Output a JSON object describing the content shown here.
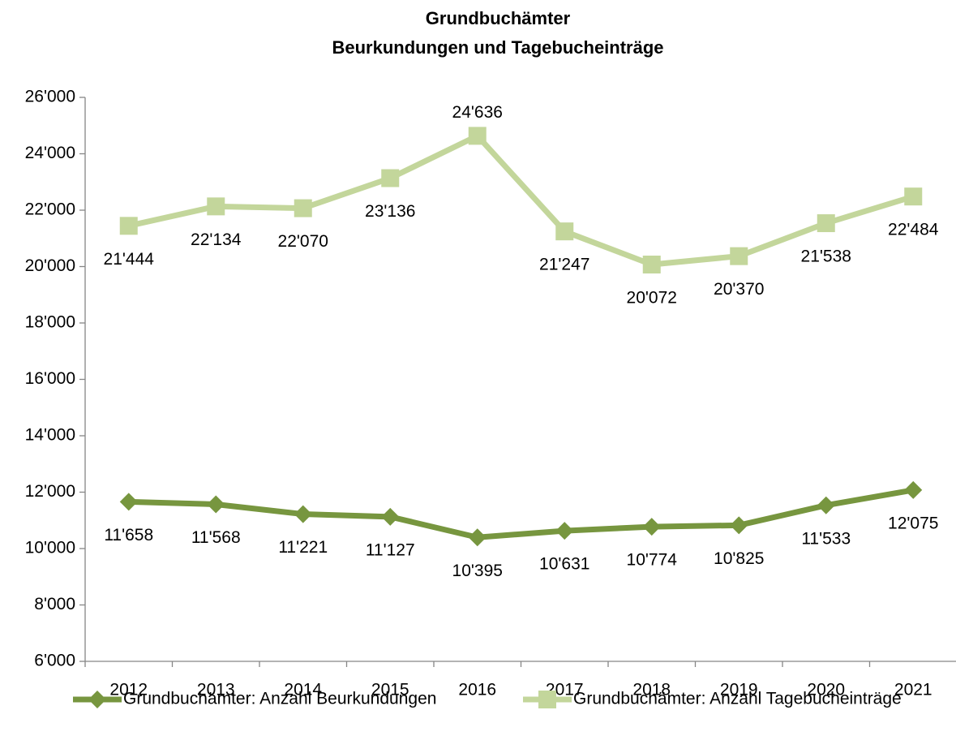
{
  "chart_data": {
    "type": "line",
    "title": "Grundbuchämter",
    "subtitle": "Beurkundungen und Tagebucheinträge",
    "categories": [
      "2012",
      "2013",
      "2014",
      "2015",
      "2016",
      "2017",
      "2018",
      "2019",
      "2020",
      "2021"
    ],
    "series": [
      {
        "name": "Grundbuchämter: Anzahl Beurkundungen",
        "color": "#77963f",
        "marker": "diamond",
        "values": [
          11658,
          11568,
          11221,
          11127,
          10395,
          10631,
          10774,
          10825,
          11533,
          12075
        ],
        "value_labels": [
          "11'658",
          "11'568",
          "11'221",
          "11'127",
          "10'395",
          "10'631",
          "10'774",
          "10'825",
          "11'533",
          "12'075"
        ]
      },
      {
        "name": "Grundbuchämter: Anzahl Tagebucheinträge",
        "color": "#c3d69b",
        "marker": "square",
        "values": [
          21444,
          22134,
          22070,
          23136,
          24636,
          21247,
          20072,
          20370,
          21538,
          22484
        ],
        "value_labels": [
          "21'444",
          "22'134",
          "22'070",
          "23'136",
          "24'636",
          "21'247",
          "20'072",
          "20'370",
          "21'538",
          "22'484"
        ]
      }
    ],
    "ylim": [
      6000,
      26000
    ],
    "yticks": [
      {
        "value": 6000,
        "label": "6'000"
      },
      {
        "value": 8000,
        "label": "8'000"
      },
      {
        "value": 10000,
        "label": "10'000"
      },
      {
        "value": 12000,
        "label": "12'000"
      },
      {
        "value": 14000,
        "label": "14'000"
      },
      {
        "value": 16000,
        "label": "16'000"
      },
      {
        "value": 18000,
        "label": "18'000"
      },
      {
        "value": 20000,
        "label": "20'000"
      },
      {
        "value": 22000,
        "label": "22'000"
      },
      {
        "value": 24000,
        "label": "24'000"
      },
      {
        "value": 26000,
        "label": "26'000"
      }
    ],
    "grid": false,
    "legend": "bottom"
  }
}
